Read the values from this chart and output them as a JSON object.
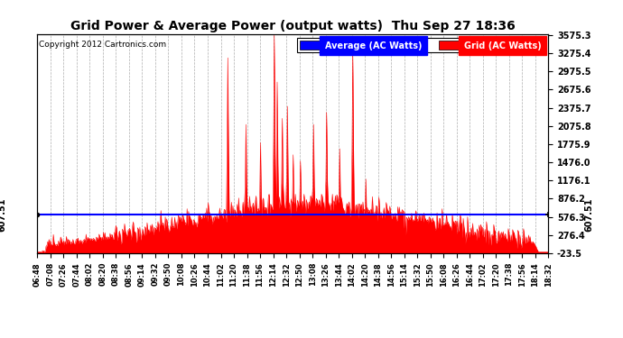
{
  "title": "Grid Power & Average Power (output watts)  Thu Sep 27 18:36",
  "copyright": "Copyright 2012 Cartronics.com",
  "legend_average": "Average (AC Watts)",
  "legend_grid": "Grid (AC Watts)",
  "legend_avg_color": "#0000ff",
  "legend_grid_bg": "#0000ff",
  "legend_grid_color": "#ff0000",
  "avg_value": 607.51,
  "avg_label": "607.51",
  "background_color": "#ffffff",
  "plot_bg_color": "#ffffff",
  "grid_color": "#999999",
  "grid_style": "--",
  "yticks": [
    -23.5,
    276.4,
    576.3,
    876.2,
    1176.1,
    1476.0,
    1775.9,
    2075.8,
    2375.7,
    2675.6,
    2975.5,
    3275.4,
    3575.3
  ],
  "ymin": -23.5,
  "ymax": 3575.3,
  "xtick_labels": [
    "06:48",
    "07:08",
    "07:26",
    "07:44",
    "08:02",
    "08:20",
    "08:38",
    "08:56",
    "09:14",
    "09:32",
    "09:50",
    "10:08",
    "10:26",
    "10:44",
    "11:02",
    "11:20",
    "11:38",
    "11:56",
    "12:14",
    "12:32",
    "12:50",
    "13:08",
    "13:26",
    "13:44",
    "14:02",
    "14:20",
    "14:38",
    "14:56",
    "15:14",
    "15:32",
    "15:50",
    "16:08",
    "16:26",
    "16:44",
    "17:02",
    "17:20",
    "17:38",
    "17:56",
    "18:14",
    "18:32"
  ],
  "fill_color": "#ff0000",
  "fill_alpha": 1.0,
  "line_color": "#ff0000"
}
